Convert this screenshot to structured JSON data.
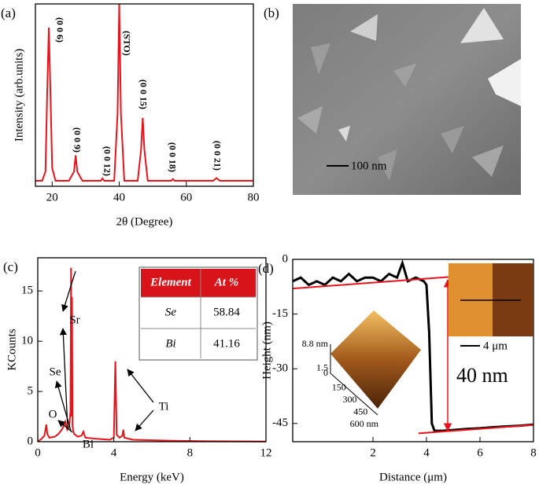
{
  "chart_data": [
    {
      "type": "line",
      "panel_label": "(a)",
      "x_label": "2θ (Degree)",
      "y_label": "Intensity (arb.units)",
      "xlim": [
        15,
        80
      ],
      "xticks": [
        20,
        40,
        60,
        80
      ],
      "ylim": [
        0,
        100
      ],
      "series": [
        {
          "color": "#e8141b",
          "x": [
            15,
            17,
            18,
            18.5,
            19,
            19.5,
            20,
            21,
            25,
            26.5,
            27,
            27.5,
            29,
            34.5,
            35,
            35.5,
            38.5,
            39.5,
            40,
            40.5,
            41.5,
            45.5,
            46.5,
            47,
            47.5,
            48.5,
            55.5,
            56,
            56.5,
            68,
            69,
            70,
            80
          ],
          "values": [
            3,
            3,
            8,
            50,
            87,
            50,
            10,
            3,
            3,
            8,
            17,
            8,
            3,
            3,
            4.3,
            3,
            3,
            40,
            100,
            40,
            3,
            3,
            20,
            37.5,
            20,
            3,
            3,
            4,
            3,
            3,
            4.5,
            3,
            3
          ]
        }
      ],
      "peak_labels": [
        "(0 0 6)",
        "(0 0 9)",
        "(0 0 12)",
        "(STO)",
        "(0 0 15)",
        "(0 0 18)",
        "(0 0 21)"
      ]
    },
    {
      "type": "line",
      "panel_label": "(c)",
      "x_label": "Energy (keV)",
      "y_label": "KCounts",
      "xlim": [
        0,
        12
      ],
      "xticks": [
        0,
        4,
        8,
        12
      ],
      "ylim": [
        0,
        18.3
      ],
      "yticks": [
        0,
        5,
        10,
        15
      ],
      "series": [
        {
          "color": "#e8141b",
          "x": [
            0,
            0.2,
            0.35,
            0.45,
            0.5,
            0.6,
            0.9,
            1.1,
            1.3,
            1.45,
            1.55,
            1.65,
            1.72,
            1.75,
            1.78,
            1.8,
            1.83,
            1.9,
            2.1,
            2.3,
            2.4,
            2.5,
            3.0,
            3.8,
            4.0,
            4.08,
            4.15,
            4.3,
            4.45,
            4.5,
            4.55,
            5,
            7,
            9,
            12
          ],
          "values": [
            0,
            0.3,
            0.6,
            1.7,
            0.8,
            0.4,
            0.5,
            0.8,
            1.3,
            2.0,
            1.2,
            1.5,
            3,
            17.3,
            2.5,
            14.4,
            1.5,
            0.8,
            0.5,
            0.6,
            1.0,
            0.4,
            0.3,
            0.2,
            0.4,
            8,
            0.7,
            0.4,
            0.6,
            1.2,
            0.4,
            0.2,
            0.1,
            0.05,
            0.02
          ]
        }
      ],
      "element_labels": [
        "Sr",
        "Se",
        "O",
        "Bi",
        "Ti"
      ],
      "table": {
        "header": [
          "Element",
          "At %"
        ],
        "rows": [
          [
            "Se",
            58.84
          ],
          [
            "Bi",
            41.16
          ]
        ]
      }
    },
    {
      "type": "line",
      "panel_label": "(d)",
      "x_label": "Distance (μm)",
      "y_label": "Height (nm)",
      "xlim": [
        -1,
        8
      ],
      "xticks": [
        2,
        4,
        6,
        8
      ],
      "ylim": [
        -50,
        0
      ],
      "yticks": [
        0,
        -15,
        -30,
        -45
      ],
      "series": [
        {
          "color": "#000000",
          "x": [
            -1,
            -0.7,
            -0.4,
            -0.1,
            0.2,
            0.5,
            0.8,
            1.1,
            1.4,
            1.7,
            2.0,
            2.3,
            2.6,
            2.9,
            3.1,
            3.3,
            3.6,
            3.9,
            4.0,
            4.1,
            4.2,
            4.3,
            4.6,
            5.0,
            5.5,
            6.0,
            6.5,
            7.0,
            7.5,
            8.0
          ],
          "values": [
            -6,
            -5,
            -7,
            -6,
            -7,
            -5,
            -6,
            -4,
            -6,
            -5,
            -5,
            -6,
            -4,
            -5,
            -1,
            -6,
            -5,
            -6,
            -7,
            -20,
            -45,
            -47,
            -47,
            -46.8,
            -46.5,
            -46.3,
            -46,
            -45.8,
            -45.6,
            -45.3
          ]
        },
        {
          "color": "#e8141b",
          "x": [
            -1,
            4.9
          ],
          "values": [
            -8,
            -4.8
          ]
        },
        {
          "color": "#e8141b",
          "x": [
            3.7,
            8
          ],
          "values": [
            -47.7,
            -45.4
          ]
        }
      ],
      "annotation": "40 nm",
      "inset_3d": {
        "z_ticks": [
          {
            "value": 8.8,
            "label": "8.8 nm"
          },
          1.5,
          0
        ],
        "xy_ticks": [
          150,
          300,
          450,
          {
            "value": 600,
            "label": "600 nm"
          }
        ]
      },
      "inset_image": {
        "scale_bar": "4 μm"
      }
    }
  ],
  "sem_image": {
    "panel_label": "(b)",
    "scale_bar": "100 nm"
  }
}
